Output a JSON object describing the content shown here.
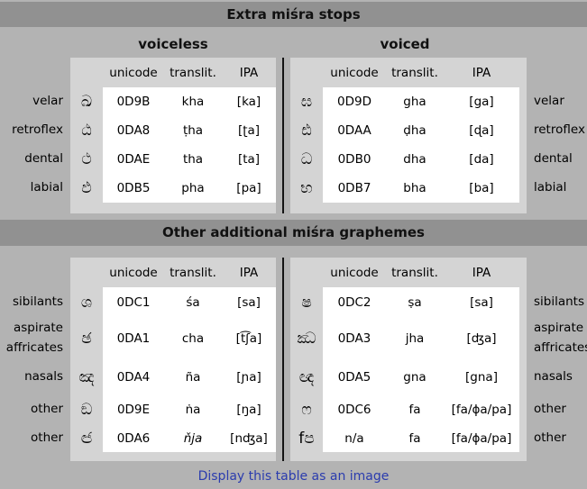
{
  "colors": {
    "page_bg": "#b3b3b3",
    "bar_bg": "#919191",
    "table_bg": "#d4d4d4",
    "cell_bg": "#ffffff",
    "divider": "#141414",
    "link": "#2b3cae"
  },
  "sections": [
    {
      "title": "Extra miśra stops",
      "left_heading": "voiceless",
      "right_heading": "voiced",
      "columns": {
        "unicode": "unicode",
        "translit": "translit.",
        "ipa": "IPA"
      },
      "rows": [
        {
          "label_left": "velar",
          "label_right": "velar",
          "left": {
            "glyph": "ඛ",
            "unicode": "0D9B",
            "translit": "kha",
            "ipa": "[ka]"
          },
          "right": {
            "glyph": "ඝ",
            "unicode": "0D9D",
            "translit": "gha",
            "ipa": "[ga]"
          }
        },
        {
          "label_left": "retroflex",
          "label_right": "retroflex",
          "left": {
            "glyph": "ඨ",
            "unicode": "0DA8",
            "translit": "ṭha",
            "ipa": "[ʈa]"
          },
          "right": {
            "glyph": "ඪ",
            "unicode": "0DAA",
            "translit": "ḍha",
            "ipa": "[ɖa]"
          }
        },
        {
          "label_left": "dental",
          "label_right": "dental",
          "left": {
            "glyph": "ථ",
            "unicode": "0DAE",
            "translit": "tha",
            "ipa": "[ta]"
          },
          "right": {
            "glyph": "ධ",
            "unicode": "0DB0",
            "translit": "dha",
            "ipa": "[da]"
          }
        },
        {
          "label_left": "labial",
          "label_right": "labial",
          "left": {
            "glyph": "ඵ",
            "unicode": "0DB5",
            "translit": "pha",
            "ipa": "[pa]"
          },
          "right": {
            "glyph": "භ",
            "unicode": "0DB7",
            "translit": "bha",
            "ipa": "[ba]"
          }
        }
      ]
    },
    {
      "title": "Other additional miśra graphemes",
      "columns": {
        "unicode": "unicode",
        "translit": "translit.",
        "ipa": "IPA"
      },
      "rows": [
        {
          "label_left": "sibilants",
          "label_right": "sibilants",
          "left": {
            "glyph": "ශ",
            "unicode": "0DC1",
            "translit": "śa",
            "ipa": "[sa]"
          },
          "right": {
            "glyph": "ෂ",
            "unicode": "0DC2",
            "translit": "ṣa",
            "ipa": "[sa]"
          }
        },
        {
          "label_left": "aspirate affricates",
          "label_right": "aspirate affricates",
          "left": {
            "glyph": "ඡ",
            "unicode": "0DA1",
            "translit": "cha",
            "ipa": "[t͡ʃa]"
          },
          "right": {
            "glyph": "ඣ",
            "unicode": "0DA3",
            "translit": "jha",
            "ipa": "[ʤa]"
          }
        },
        {
          "label_left": "nasals",
          "label_right": "nasals",
          "left": {
            "glyph": "ඤ",
            "unicode": "0DA4",
            "translit": "ña",
            "ipa": "[ɲa]"
          },
          "right": {
            "glyph": "ඥ",
            "unicode": "0DA5",
            "translit": "gna",
            "ipa": "[gna]"
          }
        },
        {
          "label_left": "other",
          "label_right": "other",
          "left": {
            "glyph": "ඞ",
            "unicode": "0D9E",
            "translit": "ṅa",
            "ipa": "[ŋa]"
          },
          "right": {
            "glyph": "ෆ",
            "unicode": "0DC6",
            "translit": "fa",
            "ipa": "[fa/ɸa/pa]"
          }
        },
        {
          "label_left": "other",
          "label_right": "other",
          "left": {
            "glyph": "ඦ",
            "unicode": "0DA6",
            "translit": "ňja",
            "ipa": "[nʤa]"
          },
          "right": {
            "glyph": "fප",
            "unicode": "n/a",
            "translit": "fa",
            "ipa": "[fa/ɸa/pa]"
          }
        }
      ]
    }
  ],
  "footer": {
    "link_label": "Display this table as an image"
  }
}
